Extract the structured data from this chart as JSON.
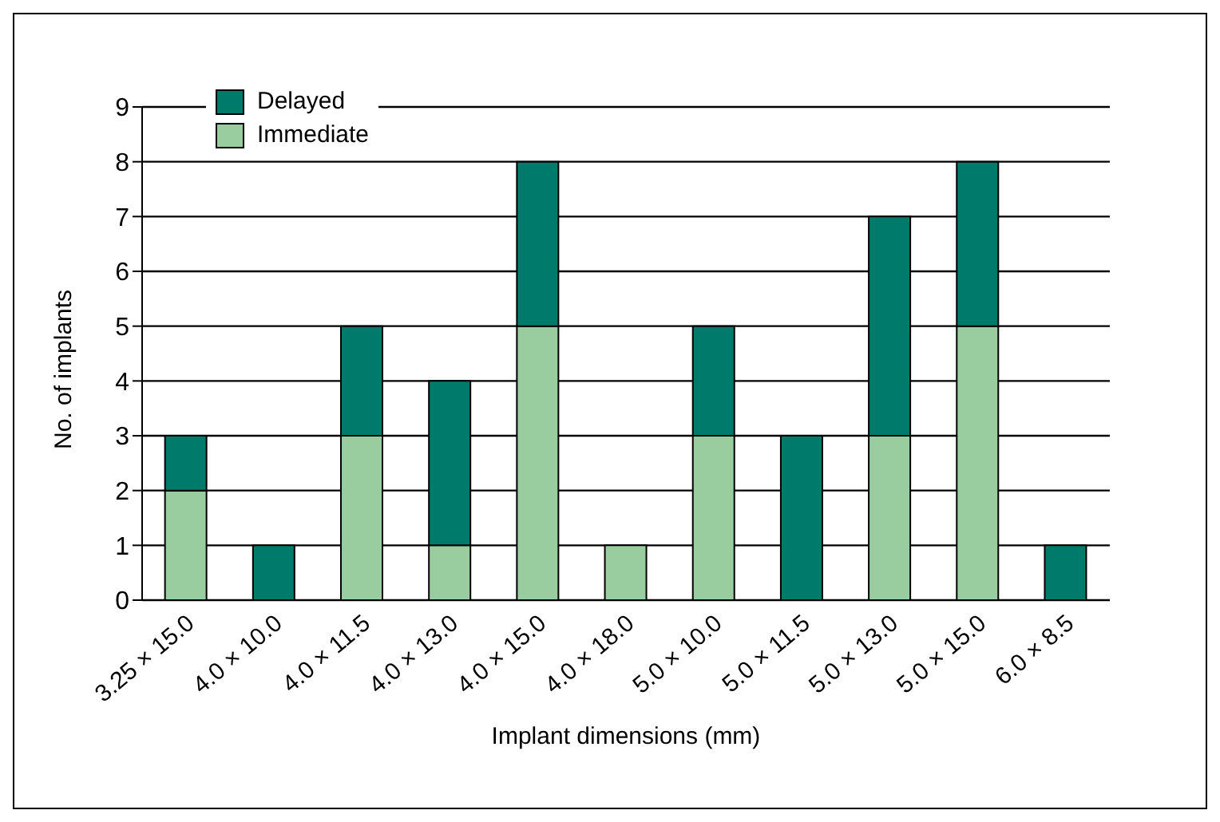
{
  "chart_data": {
    "type": "bar",
    "stacked": true,
    "xlabel": "Implant dimensions (mm)",
    "ylabel": "No. of implants",
    "categories": [
      "3.25 × 15.0",
      "4.0 × 10.0",
      "4.0 × 11.5",
      "4.0 × 13.0",
      "4.0 × 15.0",
      "4.0 × 18.0",
      "5.0 × 10.0",
      "5.0 × 11.5",
      "5.0 × 13.0",
      "5.0 × 15.0",
      "6.0 × 8.5"
    ],
    "series": [
      {
        "name": "Immediate",
        "color": "#99cc9f",
        "values": [
          2,
          0,
          3,
          1,
          5,
          1,
          3,
          0,
          3,
          5,
          0
        ]
      },
      {
        "name": "Delayed",
        "color": "#007b6b",
        "values": [
          1,
          1,
          2,
          3,
          3,
          0,
          2,
          3,
          4,
          3,
          1
        ]
      }
    ],
    "ylim": [
      0,
      9
    ],
    "yticks": [
      0,
      1,
      2,
      3,
      4,
      5,
      6,
      7,
      8,
      9
    ],
    "grid": "y",
    "legend": "top left"
  }
}
